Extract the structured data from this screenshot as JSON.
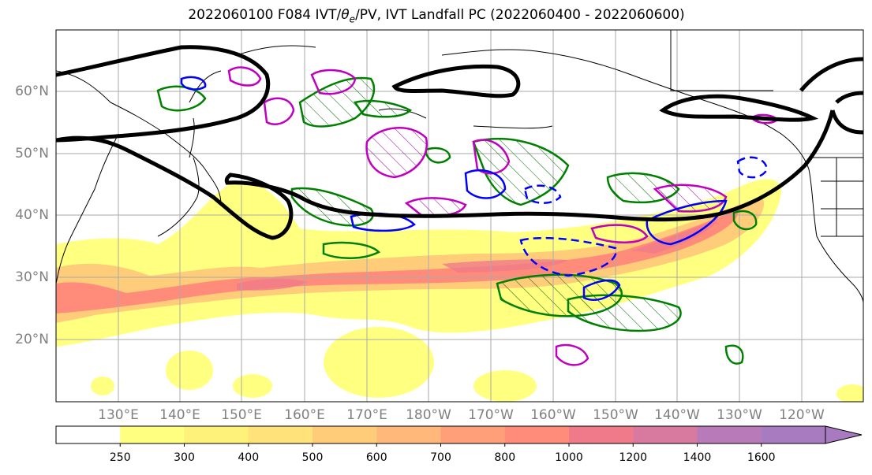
{
  "title": {
    "prefix": "2022060100 F084 IVT/",
    "theta_base": "θ",
    "theta_sub": "e",
    "suffix": "/PV, IVT Landfall PC (2022060400 - 2022060600)"
  },
  "map": {
    "lat_labels": [
      "60°N",
      "50°N",
      "40°N",
      "30°N",
      "20°N"
    ],
    "lon_labels": [
      "130°E",
      "140°E",
      "150°E",
      "160°E",
      "170°E",
      "180°W",
      "170°W",
      "160°W",
      "150°W",
      "140°W",
      "130°W",
      "120°W"
    ]
  },
  "colorbar": {
    "ticks": [
      "250",
      "300",
      "400",
      "500",
      "600",
      "700",
      "800",
      "1000",
      "1200",
      "1400",
      "1600"
    ],
    "colors": [
      "#ffffff",
      "#ffff80",
      "#fff27a",
      "#ffe27a",
      "#ffcc7a",
      "#ffb87a",
      "#ff9f7a",
      "#ff8c7a",
      "#f07a8a",
      "#d87aa0",
      "#b87ab8",
      "#a87ac0"
    ],
    "extend_color": "#a87ac0"
  },
  "colors": {
    "ivt_low": "#ffff80",
    "ivt_mid": "#ffcc7a",
    "ivt_high": "#ff8c7a",
    "ivt_peak": "#f07a8a",
    "pv_contour": "#000000",
    "theta_e_contour": "#008000",
    "pc_positive": "#c000c0",
    "pc_negative": "#0000ff",
    "grid": "#aaaaaa",
    "label_gray": "#808080",
    "coastline": "#000000"
  }
}
